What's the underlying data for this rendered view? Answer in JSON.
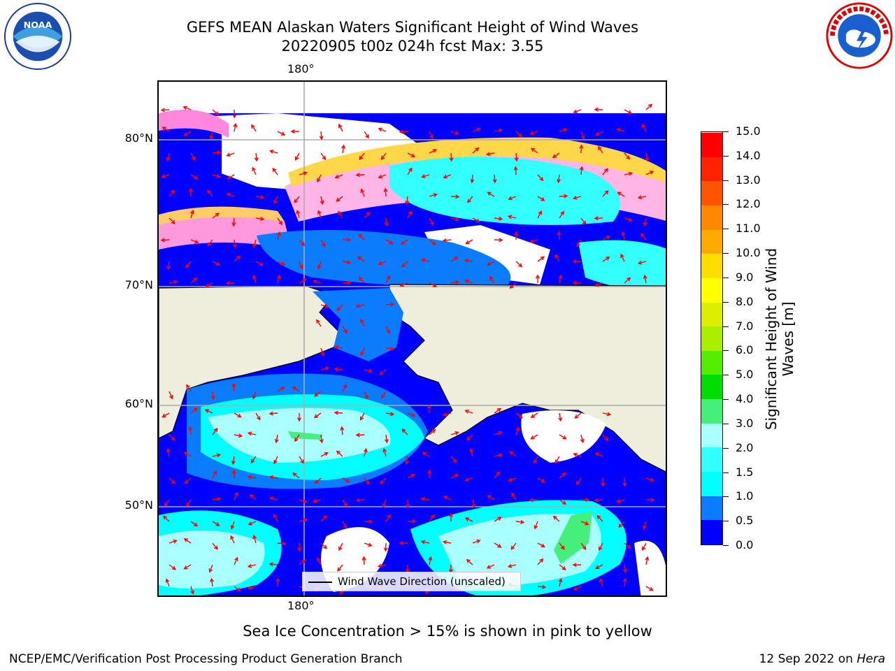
{
  "title": {
    "line1": "GEFS MEAN Alaskan Waters Significant Height of Wind Waves",
    "line2": "20220905 t00z 024h fcst   Max: 3.55"
  },
  "logos": {
    "left": "NOAA",
    "right": "NATIONAL WEATHER SERVICE"
  },
  "map": {
    "lon_top": "180°",
    "lon_bottom": "180°",
    "lat_labels": [
      "80°N",
      "70°N",
      "60°N",
      "50°N"
    ],
    "legend_label": "Wind Wave Direction (unscaled)"
  },
  "colorbar": {
    "title": "Significant Height of Wind Waves [m]",
    "levels": [
      "0.0",
      "0.5",
      "1.0",
      "1.5",
      "2.0",
      "3.0",
      "4.0",
      "5.0",
      "6.0",
      "7.0",
      "8.0",
      "9.0",
      "10.0",
      "11.0",
      "12.0",
      "13.0",
      "14.0",
      "15.0"
    ],
    "colors": [
      "#0000ff",
      "#0a7cff",
      "#00ffff",
      "#33ffff",
      "#aaffff",
      "#44f07a",
      "#00dd00",
      "#55ee00",
      "#aaee00",
      "#ddee00",
      "#ffff00",
      "#ffdd00",
      "#ffaa00",
      "#ff8800",
      "#ff5500",
      "#ff2200",
      "#ff0000"
    ]
  },
  "footer": {
    "note": "Sea Ice Concentration > 15% is shown in pink to yellow",
    "credit": "NCEP/EMC/Verification Post Processing Product Generation Branch",
    "date_prefix": "12 Sep 2022 on ",
    "date_machine": "Hera"
  }
}
